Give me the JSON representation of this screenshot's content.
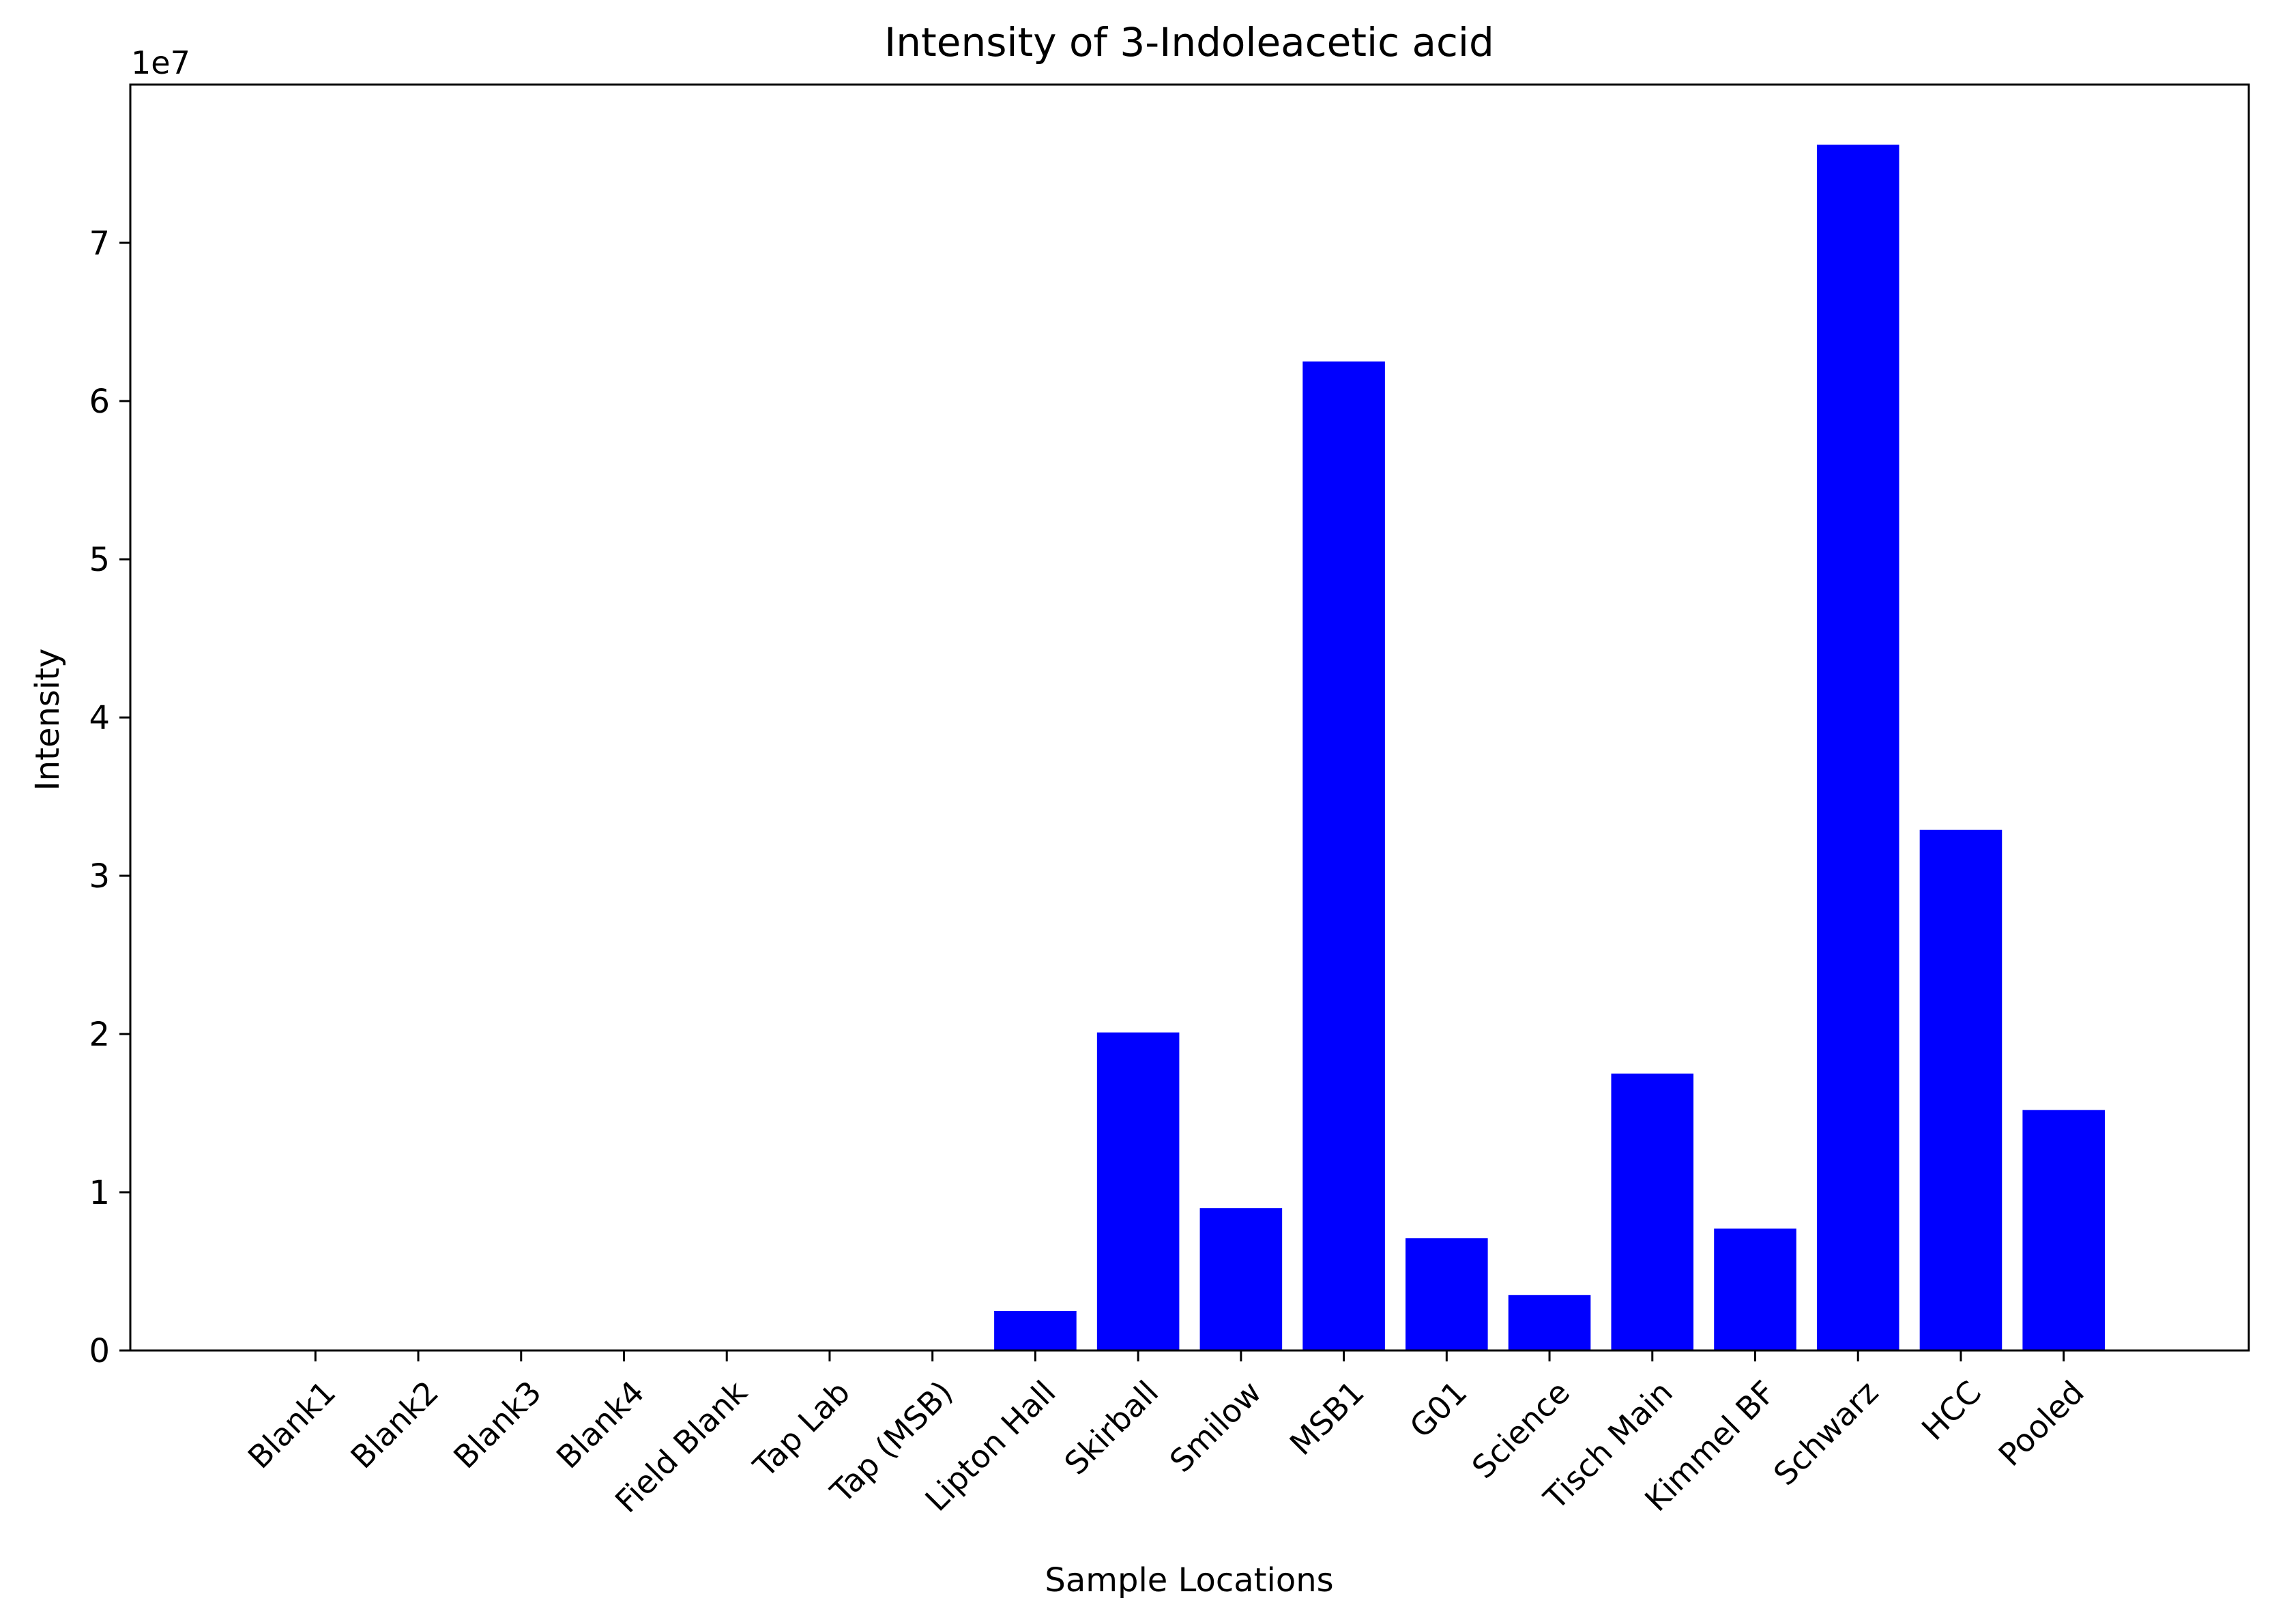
{
  "chart_data": {
    "type": "bar",
    "title": "Intensity of 3-Indoleacetic acid",
    "xlabel": "Sample Locations",
    "ylabel": "Intensity",
    "y_offset_label": "1e7",
    "y_scale": 10000000,
    "ylim": [
      0,
      80000000
    ],
    "yticks": [
      0,
      10000000,
      20000000,
      30000000,
      40000000,
      50000000,
      60000000,
      70000000
    ],
    "ytick_labels": [
      "0",
      "1",
      "2",
      "3",
      "4",
      "5",
      "6",
      "7"
    ],
    "categories": [
      "Blank1",
      "Blank2",
      "Blank3",
      "Blank4",
      "Field Blank",
      "Tap Lab",
      "Tap (MSB)",
      "Lipton Hall",
      "Skirball",
      "Smilow",
      "MSB1",
      "G01",
      "Science",
      "Tisch Main",
      "Kimmel BF",
      "Schwarz",
      "HCC",
      "Pooled"
    ],
    "values": [
      0,
      0,
      0,
      0,
      0,
      0,
      0,
      2500000,
      20100000,
      9000000,
      62500000,
      7100000,
      3500000,
      17500000,
      7700000,
      76200000,
      32900000,
      15200000
    ],
    "bar_color": "#0000ff",
    "grid": false,
    "legend": "none"
  }
}
